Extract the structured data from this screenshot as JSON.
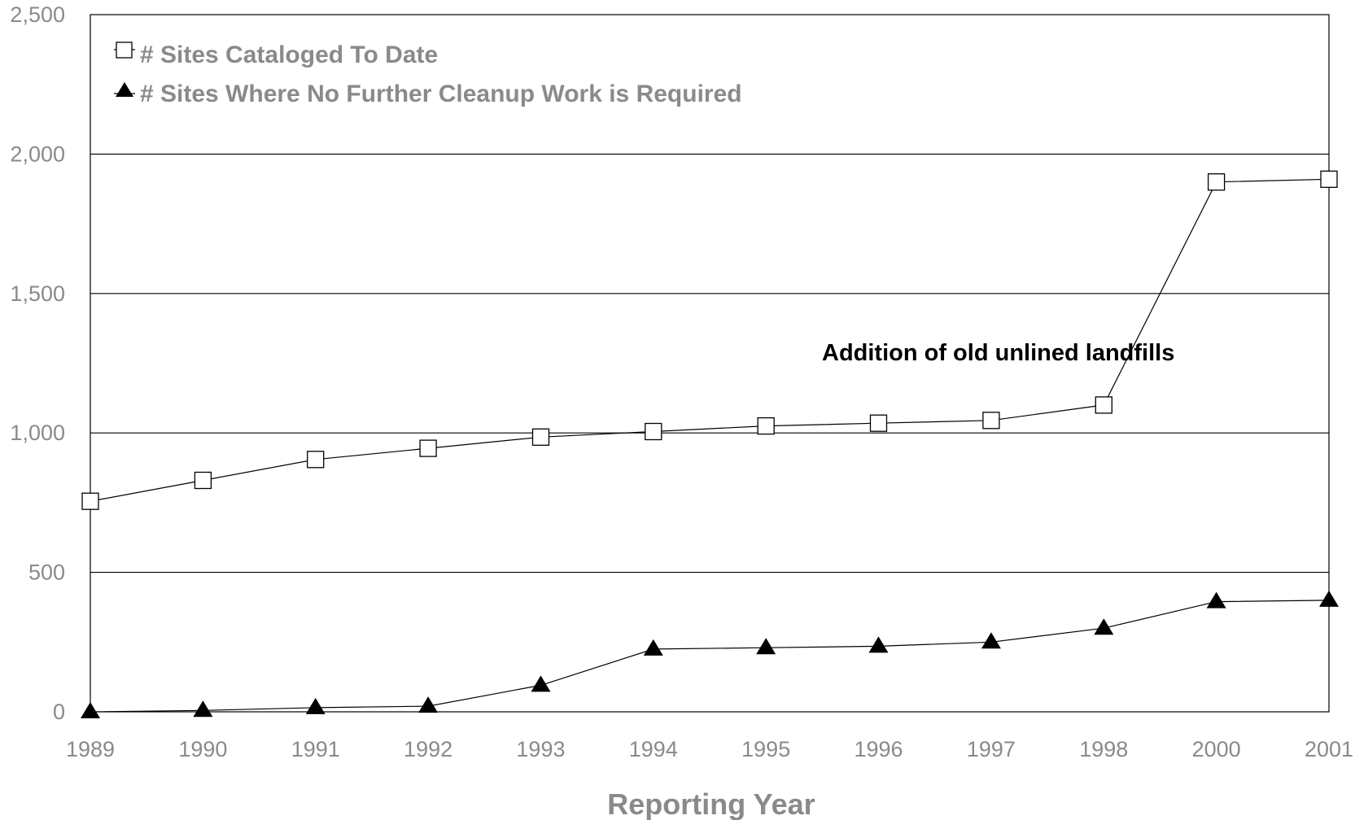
{
  "chart_data": {
    "type": "line",
    "categories": [
      "1989",
      "1990",
      "1991",
      "1992",
      "1993",
      "1994",
      "1995",
      "1996",
      "1997",
      "1998",
      "2000",
      "2001"
    ],
    "series": [
      {
        "name": "# Sites Cataloged To Date",
        "marker": "open-square",
        "values": [
          755,
          830,
          905,
          945,
          985,
          1005,
          1025,
          1035,
          1045,
          1100,
          1900,
          1910
        ]
      },
      {
        "name": "# Sites Where No Further Cleanup Work is Required",
        "marker": "filled-triangle",
        "values": [
          0,
          5,
          15,
          20,
          95,
          225,
          230,
          235,
          250,
          300,
          395,
          400
        ]
      }
    ],
    "xlabel": "Reporting Year",
    "ylabel": "",
    "ylim": [
      0,
      2500
    ],
    "yticks": [
      "0",
      "500",
      "1,000",
      "1,500",
      "2,000",
      "2,500"
    ],
    "grid": true,
    "legend_position": "top-left",
    "annotation": "Addition of old unlined landfills",
    "colors": {
      "line": "#000000",
      "grid": "#000000",
      "text": "#8a8a8a",
      "annotation": "#000000"
    }
  }
}
